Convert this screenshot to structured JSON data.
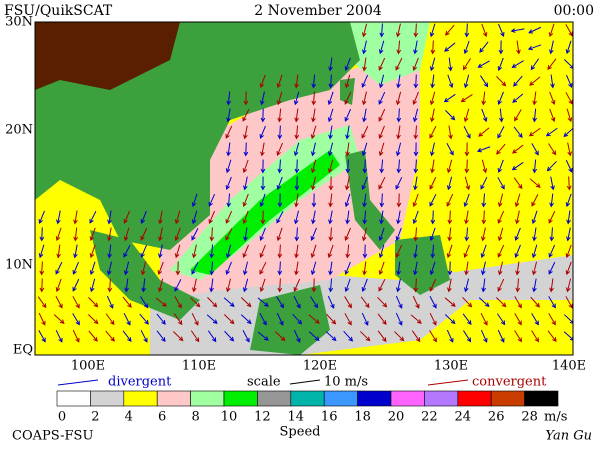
{
  "header": {
    "left": "FSU/QuikSCAT",
    "center": "2 November 2004",
    "right": "00:00"
  },
  "map": {
    "lat_labels": [
      "30N",
      "20N",
      "10N",
      "EQ"
    ],
    "lon_labels": [
      "100E",
      "110E",
      "120E",
      "130E",
      "140E"
    ]
  },
  "legend": {
    "divergent": "divergent",
    "scale": "scale",
    "scale_value": "10 m/s",
    "convergent": "convergent",
    "divergent_color": "#0000cc",
    "convergent_color": "#aa0000"
  },
  "colorbar": {
    "ticks": [
      0,
      2,
      4,
      6,
      8,
      10,
      12,
      14,
      16,
      18,
      20,
      22,
      24,
      26,
      28
    ],
    "unit": "m/s",
    "title": "Speed",
    "colors": [
      "#ffffff",
      "#d3d3d3",
      "#ffff00",
      "#ffc8c8",
      "#a0ffa0",
      "#00ee00",
      "#969696",
      "#00b4aa",
      "#3c96ff",
      "#0000cd",
      "#ff64ff",
      "#b478ff",
      "#ff0000",
      "#c83c00",
      "#000000"
    ]
  },
  "footer": {
    "left": "COAPS-FSU",
    "right": "Yan Gu"
  }
}
